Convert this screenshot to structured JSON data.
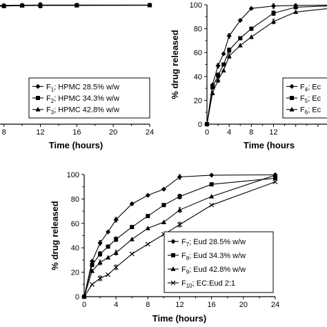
{
  "chart_data": [
    {
      "type": "line",
      "xlabel": "Time (hours)",
      "ylabel": "",
      "xlim": [
        0,
        24
      ],
      "ylim": [
        0,
        100
      ],
      "x_ticks": [
        "8",
        "12",
        "16",
        "20",
        "24"
      ],
      "y_ticks": [],
      "legend_placement": "bottom-right",
      "series": [
        {
          "name": "F1; HPMC 28.5% w/w",
          "label_prefix": "F",
          "label_sub": "1",
          "label_rest": "; HPMC 28.5% w/w",
          "marker": "diamond",
          "x": [
            4,
            6,
            8,
            10,
            12,
            16,
            24
          ],
          "y": [
            99,
            99.5,
            99.6,
            99.7,
            99.8,
            99.8,
            99.8
          ]
        },
        {
          "name": "F2; HPMC 34.3% w/w",
          "label_prefix": "F",
          "label_sub": "2",
          "label_rest": "; HPMC 34.3% w/w",
          "marker": "square",
          "x": [
            4,
            6,
            8,
            10,
            12,
            16,
            24
          ],
          "y": [
            97,
            98.5,
            99,
            99.4,
            99.5,
            99.6,
            99.7
          ]
        },
        {
          "name": "F3; HPMC 42.8% w/w",
          "label_prefix": "F",
          "label_sub": "3",
          "label_rest": "; HPMC 42.8% w/w",
          "marker": "triangle",
          "x": [
            4,
            6,
            8,
            10,
            12,
            16,
            24
          ],
          "y": [
            93,
            98,
            99,
            99.3,
            99.4,
            99.5,
            99.6
          ]
        }
      ]
    },
    {
      "type": "line",
      "xlabel": "Time (hours",
      "ylabel": "% drug released",
      "xlim": [
        0,
        24
      ],
      "ylim": [
        0,
        100
      ],
      "x_ticks": [
        "0",
        "4",
        "8",
        "12"
      ],
      "y_ticks": [
        "0",
        "20",
        "40",
        "60",
        "80",
        "100"
      ],
      "legend_placement": "bottom-right",
      "series": [
        {
          "name": "F4; Ec",
          "label_prefix": "F",
          "label_sub": "4",
          "label_rest": "; Ec",
          "marker": "diamond",
          "x": [
            0,
            1,
            2,
            3,
            4,
            6,
            8,
            12,
            16,
            24
          ],
          "y": [
            0,
            33,
            49,
            59,
            74,
            87,
            97,
            99,
            99.5,
            99.8
          ]
        },
        {
          "name": "F5; Ec",
          "label_prefix": "F",
          "label_sub": "5",
          "label_rest": "; Ec",
          "marker": "square",
          "x": [
            0,
            1,
            2,
            3,
            4,
            6,
            8,
            12,
            16,
            24
          ],
          "y": [
            0,
            31,
            41,
            50,
            62,
            72,
            80,
            93,
            98,
            99.5
          ]
        },
        {
          "name": "F6; Ec",
          "label_prefix": "F",
          "label_sub": "6",
          "label_rest": "; Ec",
          "marker": "triangle",
          "x": [
            0,
            1,
            2,
            3,
            4,
            6,
            8,
            12,
            16,
            24
          ],
          "y": [
            0,
            26,
            37,
            45,
            57,
            66,
            73,
            86,
            94,
            98
          ]
        }
      ]
    },
    {
      "type": "line",
      "xlabel": "Time (hours)",
      "ylabel": "% drug released",
      "xlim": [
        0,
        24
      ],
      "ylim": [
        0,
        100
      ],
      "x_ticks": [
        "0",
        "4",
        "8",
        "12",
        "16",
        "20",
        "24"
      ],
      "y_ticks": [
        "0",
        "20",
        "40",
        "60",
        "80",
        "100"
      ],
      "legend_placement": "bottom-right",
      "series": [
        {
          "name": "F7; Eud 28.5% w/w",
          "label_prefix": "F",
          "label_sub": "7",
          "label_rest": "; Eud 28.5% w/w",
          "marker": "diamond",
          "x": [
            0,
            1,
            2,
            3,
            4,
            6,
            8,
            10,
            12,
            16,
            24
          ],
          "y": [
            0,
            29,
            44,
            53,
            63,
            76,
            83,
            88,
            98,
            99.5,
            99.8
          ]
        },
        {
          "name": "F8; Eud 34.3% w/w",
          "label_prefix": "F",
          "label_sub": "8",
          "label_rest": "; Eud 34.3% w/w",
          "marker": "square",
          "x": [
            0,
            1,
            2,
            3,
            4,
            6,
            8,
            10,
            12,
            16,
            24
          ],
          "y": [
            0,
            26,
            35,
            41,
            47,
            57,
            66,
            75,
            82,
            92,
            97
          ]
        },
        {
          "name": "F9; Eud 42.8% w/w",
          "label_prefix": "F",
          "label_sub": "9",
          "label_rest": "; Eud 42.8% w/w",
          "marker": "triangle",
          "x": [
            0,
            1,
            2,
            3,
            4,
            6,
            8,
            10,
            12,
            16,
            24
          ],
          "y": [
            0,
            21,
            28,
            32,
            36,
            47,
            56,
            61,
            71,
            82,
            99.5
          ]
        },
        {
          "name": "F10; EC:Eud 2:1",
          "label_prefix": "F",
          "label_sub": "10",
          "label_rest": "; EC:Eud 2:1",
          "marker": "x",
          "x": [
            0,
            1,
            2,
            3,
            4,
            6,
            8,
            10,
            12,
            16,
            24
          ],
          "y": [
            0,
            10,
            15,
            18,
            24,
            35,
            43,
            51,
            59,
            75,
            94
          ]
        }
      ]
    }
  ]
}
